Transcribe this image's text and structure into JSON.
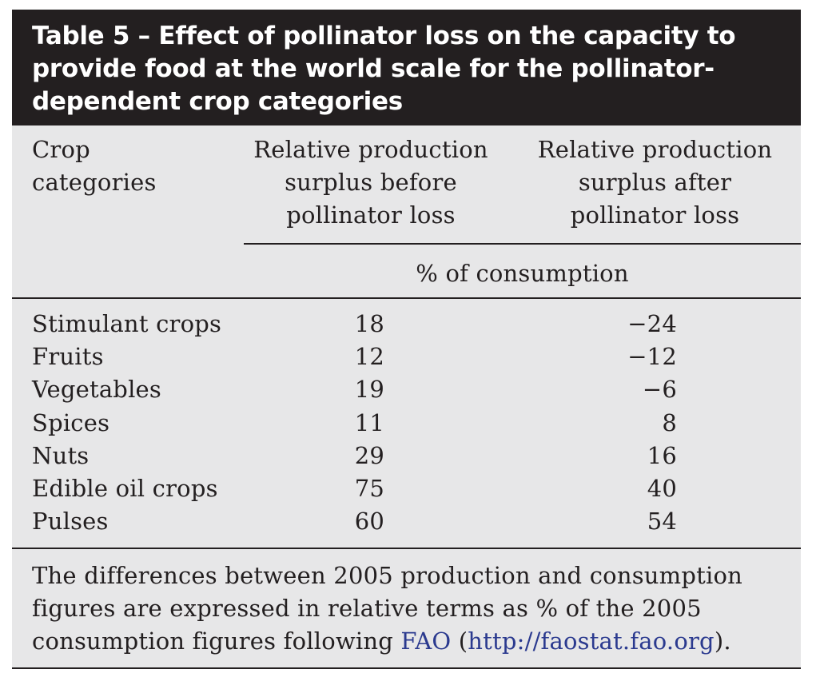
{
  "table": {
    "title": "Table 5 – Effect of pollinator loss on the capacity to provide food at the world scale for the pollinator-dependent crop categories",
    "headers": {
      "crop": [
        "Crop",
        "categories"
      ],
      "before": [
        "Relative production",
        "surplus before",
        "pollinator loss"
      ],
      "after": [
        "Relative production",
        "surplus after",
        "pollinator loss"
      ],
      "unit": "% of consumption"
    },
    "rows": [
      {
        "crop": "Stimulant crops",
        "before": "18",
        "after": "−24"
      },
      {
        "crop": "Fruits",
        "before": "12",
        "after": "−12"
      },
      {
        "crop": "Vegetables",
        "before": "19",
        "after": "−6"
      },
      {
        "crop": "Spices",
        "before": "11",
        "after": "8"
      },
      {
        "crop": "Nuts",
        "before": "29",
        "after": "16"
      },
      {
        "crop": "Edible oil crops",
        "before": "75",
        "after": "40"
      },
      {
        "crop": "Pulses",
        "before": "60",
        "after": "54"
      }
    ],
    "footnote": {
      "text_before": "The differences between 2005 production and consumption figures are expressed in relative terms as % of the 2005 consumption figures following ",
      "link_fao": "FAO",
      "text_mid": " (",
      "link_url": "http://faostat.fao.org",
      "text_after": ")."
    },
    "colors": {
      "title_background": "#231f20",
      "title_text": "#ffffff",
      "table_background": "#e7e7e8",
      "rule": "#231f20",
      "link": "#2b3a8f"
    }
  }
}
